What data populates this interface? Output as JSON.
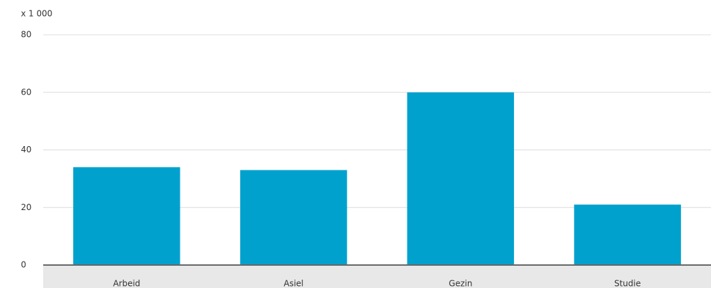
{
  "chart_data": {
    "type": "bar",
    "y_unit_label": "x 1 000",
    "categories": [
      "Arbeid",
      "Asiel",
      "Gezin",
      "Studie"
    ],
    "values": [
      34,
      33,
      60,
      21
    ],
    "color": "#00a1cd",
    "ylim": [
      0,
      80
    ],
    "yticks": [
      0,
      20,
      40,
      60,
      80
    ],
    "grid": true
  }
}
